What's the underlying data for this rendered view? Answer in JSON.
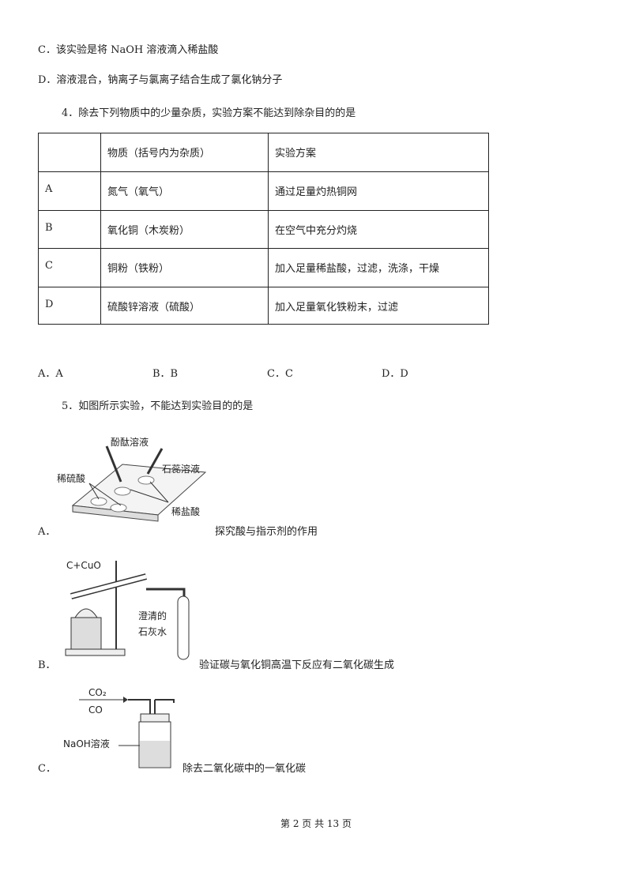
{
  "lines": [
    "C．该实验是将 NaOH 溶液滴入稀盐酸",
    "D．溶液混合，钠离子与氯离子结合生成了氯化钠分子"
  ],
  "question4": {
    "stem": "4．除去下列物质中的少量杂质，实验方案不能达到除杂目的的是",
    "table": {
      "header": [
        "物质（括号内为杂质）",
        "实验方案"
      ],
      "rows": [
        [
          "A",
          "氮气（氧气）",
          "通过足量灼热铜网"
        ],
        [
          "B",
          "氧化铜（木炭粉）",
          "在空气中充分灼烧"
        ],
        [
          "C",
          "铜粉（铁粉）",
          "加入足量稀盐酸，过滤，洗涤，干燥"
        ],
        [
          "D",
          "硫酸锌溶液（硫酸）",
          "加入足量氧化铁粉末，过滤"
        ]
      ]
    },
    "options": [
      "A．A",
      "B．B",
      "C．C",
      "D．D"
    ]
  },
  "question5": {
    "stem": "5．如图所示实验，不能达到实验目的的是",
    "options": [
      {
        "label": "A．",
        "caption": "探究酸与指示剂的作用",
        "figure_labels": [
          "酚酞溶液",
          "石蕊溶液",
          "稀硫酸",
          "稀盐酸"
        ]
      },
      {
        "label": "B．",
        "caption": "验证碳与氧化铜高温下反应有二氧化碳生成",
        "figure_labels": [
          "C+CuO",
          "澄清的",
          "石灰水"
        ]
      },
      {
        "label": "C．",
        "caption": "除去二氧化碳中的一氧化碳",
        "figure_labels": [
          "CO₂",
          "CO",
          "NaOH溶液"
        ]
      }
    ]
  },
  "footer": "第 2 页 共 13 页"
}
